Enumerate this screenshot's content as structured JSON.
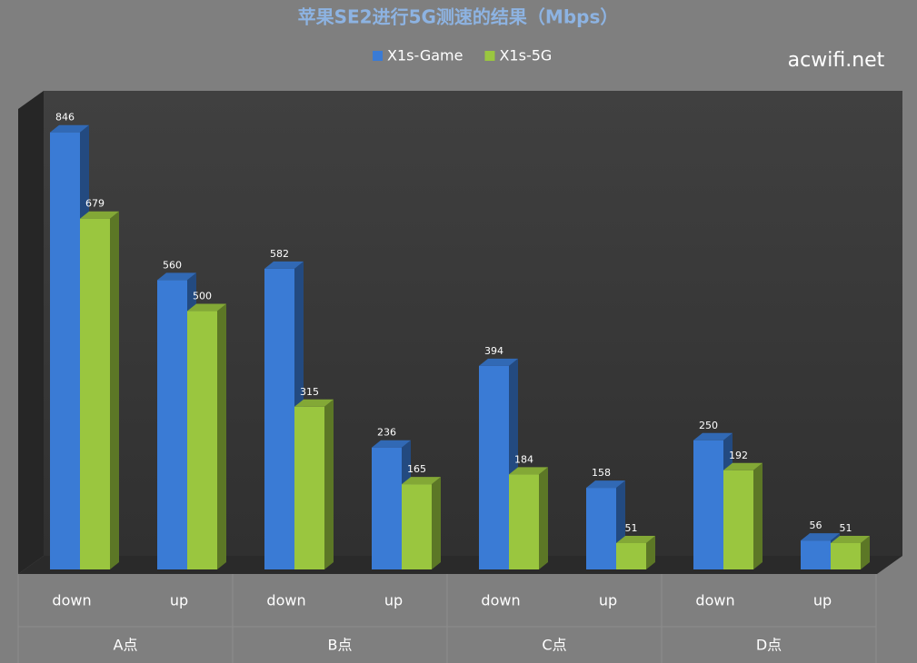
{
  "chart_data": {
    "type": "bar3d",
    "title": "苹果SE2进行5G测速的结果（Mbps）",
    "watermark": "acwifi.net",
    "categories": [
      "down",
      "up",
      "down",
      "up",
      "down",
      "up",
      "down",
      "up"
    ],
    "groups": [
      "A点",
      "B点",
      "C点",
      "D点"
    ],
    "series": [
      {
        "name": "X1s-Game",
        "color": "#3a7bd5",
        "values": [
          846,
          560,
          582,
          236,
          394,
          158,
          250,
          56
        ]
      },
      {
        "name": "X1s-5G",
        "color": "#9ac63f",
        "values": [
          679,
          500,
          315,
          165,
          184,
          51,
          192,
          51
        ]
      }
    ],
    "ylim": [
      0,
      900
    ]
  }
}
